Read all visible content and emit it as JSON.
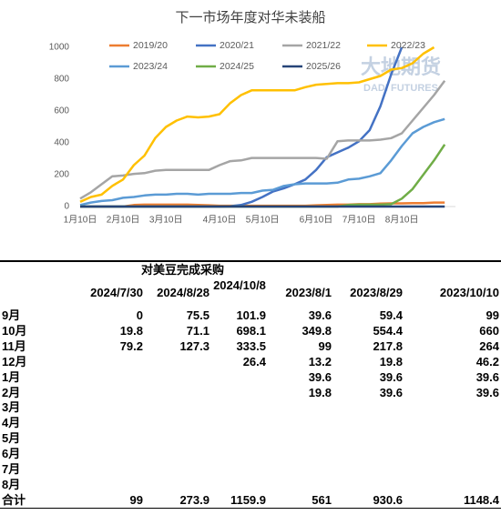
{
  "chart_data": {
    "type": "line",
    "title": "下一市场年度对华未装船",
    "categories": [
      "1月10日",
      null,
      null,
      null,
      "2月10日",
      null,
      null,
      null,
      "3月10日",
      null,
      null,
      null,
      null,
      "4月10日",
      null,
      null,
      null,
      "5月10日",
      null,
      null,
      null,
      null,
      "6月10日",
      null,
      null,
      null,
      "7月10日",
      null,
      null,
      null,
      "8月10日",
      null,
      null,
      null,
      null,
      null
    ],
    "series": [
      {
        "name": "2019/20",
        "color": "#ed7d31",
        "values": [
          0,
          0,
          0,
          0,
          0,
          10,
          12,
          12,
          12,
          12,
          12,
          10,
          8,
          5,
          5,
          5,
          5,
          5,
          5,
          5,
          5,
          5,
          8,
          10,
          12,
          12,
          15,
          15,
          18,
          20,
          20,
          22,
          22,
          25,
          25,
          null
        ]
      },
      {
        "name": "2020/21",
        "color": "#4472c4",
        "values": [
          0,
          0,
          0,
          0,
          0,
          0,
          0,
          0,
          0,
          0,
          0,
          0,
          0,
          0,
          2,
          10,
          30,
          60,
          95,
          115,
          140,
          170,
          230,
          310,
          340,
          370,
          410,
          480,
          630,
          830,
          1000,
          null,
          null,
          null,
          null,
          null
        ]
      },
      {
        "name": "2021/22",
        "color": "#a5a5a5",
        "values": [
          50,
          90,
          140,
          190,
          195,
          205,
          210,
          225,
          230,
          230,
          230,
          230,
          230,
          260,
          285,
          290,
          305,
          305,
          305,
          305,
          305,
          305,
          305,
          300,
          410,
          415,
          415,
          415,
          420,
          430,
          460,
          540,
          620,
          700,
          790,
          null
        ]
      },
      {
        "name": "2022/23",
        "color": "#ffc000",
        "values": [
          30,
          60,
          75,
          130,
          170,
          260,
          320,
          430,
          500,
          540,
          565,
          560,
          565,
          580,
          650,
          700,
          730,
          730,
          730,
          730,
          730,
          750,
          765,
          770,
          775,
          775,
          780,
          800,
          820,
          860,
          870,
          900,
          960,
          1000,
          null,
          null
        ]
      },
      {
        "name": "2023/24",
        "color": "#5b9bd5",
        "values": [
          10,
          25,
          35,
          40,
          55,
          60,
          70,
          75,
          75,
          80,
          80,
          75,
          80,
          80,
          80,
          85,
          85,
          100,
          105,
          130,
          140,
          145,
          145,
          145,
          150,
          170,
          175,
          190,
          210,
          290,
          380,
          460,
          500,
          530,
          550,
          null
        ]
      },
      {
        "name": "2024/25",
        "color": "#70ad47",
        "values": [
          0,
          0,
          0,
          0,
          0,
          0,
          0,
          0,
          0,
          0,
          0,
          0,
          0,
          0,
          0,
          0,
          0,
          0,
          0,
          0,
          0,
          0,
          0,
          0,
          0,
          10,
          12,
          12,
          12,
          15,
          50,
          110,
          200,
          290,
          390,
          null
        ]
      },
      {
        "name": "2025/26",
        "color": "#264478",
        "values": [
          0,
          0,
          0,
          0,
          0,
          0,
          0,
          0,
          0,
          0,
          0,
          0,
          0,
          0,
          0,
          0,
          0,
          0,
          0,
          0,
          0,
          0,
          0,
          0,
          0,
          0,
          0,
          0,
          0,
          0,
          0,
          0,
          0,
          0,
          0,
          null
        ]
      }
    ],
    "ylim": [
      0,
      1000
    ],
    "yticks": [
      0,
      200,
      400,
      600,
      800,
      1000
    ],
    "grid": false,
    "legend": "top"
  },
  "watermark": {
    "name": "大地期货",
    "name_en": "DADI FUTURES"
  },
  "table": {
    "title": "对美豆完成采购",
    "columns": [
      "2024/7/30",
      "2024/8/28",
      "2024/10/8",
      "2023/8/1",
      "2023/8/29",
      "2023/10/10"
    ],
    "rows": [
      {
        "label": "9月",
        "values": [
          0,
          75.5,
          101.9,
          39.6,
          59.4,
          99
        ]
      },
      {
        "label": "10月",
        "values": [
          19.8,
          71.1,
          698.1,
          349.8,
          554.4,
          660
        ]
      },
      {
        "label": "11月",
        "values": [
          79.2,
          127.3,
          333.5,
          99,
          217.8,
          264
        ]
      },
      {
        "label": "12月",
        "values": [
          null,
          null,
          26.4,
          13.2,
          19.8,
          46.2
        ]
      },
      {
        "label": "1月",
        "values": [
          null,
          null,
          null,
          39.6,
          39.6,
          39.6
        ]
      },
      {
        "label": "2月",
        "values": [
          null,
          null,
          null,
          19.8,
          39.6,
          39.6
        ]
      },
      {
        "label": "3月",
        "values": [
          null,
          null,
          null,
          null,
          null,
          null
        ]
      },
      {
        "label": "4月",
        "values": [
          null,
          null,
          null,
          null,
          null,
          null
        ]
      },
      {
        "label": "5月",
        "values": [
          null,
          null,
          null,
          null,
          null,
          null
        ]
      },
      {
        "label": "6月",
        "values": [
          null,
          null,
          null,
          null,
          null,
          null
        ]
      },
      {
        "label": "7月",
        "values": [
          null,
          null,
          null,
          null,
          null,
          null
        ]
      },
      {
        "label": "8月",
        "values": [
          null,
          null,
          null,
          null,
          null,
          null
        ]
      },
      {
        "label": "合计",
        "values": [
          99,
          273.9,
          1159.9,
          561,
          930.6,
          1148.4
        ]
      }
    ]
  }
}
